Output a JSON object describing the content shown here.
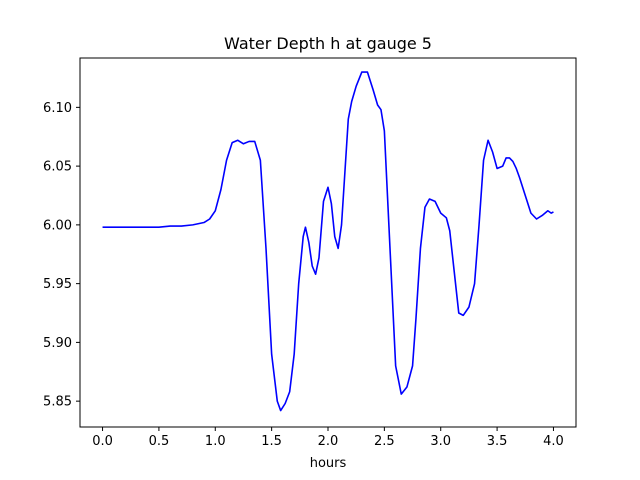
{
  "chart_data": {
    "type": "line",
    "title": "Water Depth h at gauge 5",
    "xlabel": "hours",
    "ylabel": "",
    "xlim": [
      -0.2,
      4.2
    ],
    "ylim": [
      5.828,
      6.142
    ],
    "x_ticks": [
      0.0,
      0.5,
      1.0,
      1.5,
      2.0,
      2.5,
      3.0,
      3.5,
      4.0
    ],
    "x_tick_labels": [
      "0.0",
      "0.5",
      "1.0",
      "1.5",
      "2.0",
      "2.5",
      "3.0",
      "3.5",
      "4.0"
    ],
    "y_ticks": [
      5.85,
      5.9,
      5.95,
      6.0,
      6.05,
      6.1
    ],
    "y_tick_labels": [
      "5.85",
      "5.90",
      "5.95",
      "6.00",
      "6.05",
      "6.10"
    ],
    "grid": false,
    "legend": "none",
    "series": [
      {
        "color": "#0000ff",
        "x": [
          0.0,
          0.2,
          0.4,
          0.5,
          0.6,
          0.7,
          0.8,
          0.9,
          0.95,
          1.0,
          1.05,
          1.1,
          1.15,
          1.2,
          1.25,
          1.3,
          1.35,
          1.4,
          1.45,
          1.5,
          1.55,
          1.58,
          1.62,
          1.66,
          1.7,
          1.74,
          1.78,
          1.8,
          1.83,
          1.86,
          1.89,
          1.92,
          1.96,
          2.0,
          2.03,
          2.06,
          2.09,
          2.12,
          2.15,
          2.18,
          2.21,
          2.25,
          2.3,
          2.35,
          2.4,
          2.44,
          2.47,
          2.5,
          2.55,
          2.6,
          2.65,
          2.7,
          2.75,
          2.78,
          2.82,
          2.86,
          2.9,
          2.95,
          3.0,
          3.05,
          3.08,
          3.12,
          3.16,
          3.2,
          3.25,
          3.3,
          3.34,
          3.38,
          3.42,
          3.46,
          3.5,
          3.55,
          3.58,
          3.61,
          3.64,
          3.67,
          3.7,
          3.75,
          3.8,
          3.85,
          3.9,
          3.95,
          3.98,
          4.0
        ],
        "y": [
          5.998,
          5.998,
          5.998,
          5.998,
          5.999,
          5.999,
          6.0,
          6.002,
          6.005,
          6.012,
          6.03,
          6.055,
          6.07,
          6.072,
          6.069,
          6.071,
          6.071,
          6.055,
          5.98,
          5.89,
          5.85,
          5.842,
          5.848,
          5.858,
          5.89,
          5.95,
          5.99,
          5.998,
          5.985,
          5.965,
          5.958,
          5.972,
          6.02,
          6.032,
          6.018,
          5.99,
          5.98,
          6.0,
          6.045,
          6.09,
          6.105,
          6.118,
          6.13,
          6.13,
          6.115,
          6.102,
          6.098,
          6.08,
          5.98,
          5.88,
          5.856,
          5.862,
          5.88,
          5.92,
          5.98,
          6.015,
          6.022,
          6.02,
          6.01,
          6.006,
          5.995,
          5.96,
          5.925,
          5.923,
          5.93,
          5.95,
          6.0,
          6.055,
          6.072,
          6.062,
          6.048,
          6.05,
          6.057,
          6.057,
          6.054,
          6.048,
          6.04,
          6.025,
          6.01,
          6.005,
          6.008,
          6.012,
          6.01,
          6.011
        ]
      }
    ]
  }
}
